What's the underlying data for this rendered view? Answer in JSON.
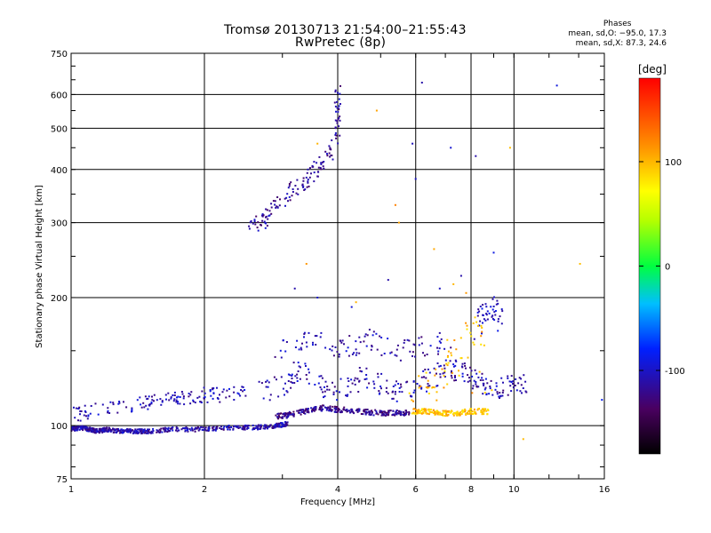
{
  "chart_data": {
    "type": "scatter",
    "title": "Tromsø 20130713 21:54:00–21:55:43",
    "subtitle": "RwPretec (8p)",
    "xlabel": "Frequency [MHz]",
    "ylabel": "Stationary phase Virtual Height [km]",
    "x_scale": "log",
    "y_scale": "log",
    "xlim": [
      1,
      16
    ],
    "ylim": [
      75,
      750
    ],
    "x_ticks": [
      1,
      2,
      4,
      6,
      8,
      10,
      16
    ],
    "x_tick_labels": [
      "1",
      "2",
      "4",
      "6",
      "8",
      "10",
      "16"
    ],
    "y_ticks": [
      75,
      100,
      200,
      300,
      400,
      500,
      600,
      750
    ],
    "y_tick_labels": [
      "75",
      "100",
      "200",
      "300",
      "400",
      "500",
      "600",
      "750"
    ],
    "grid": true,
    "phase_box": {
      "heading": "Phases",
      "line_o": "mean, sd,O: −95.0, 17.3",
      "line_x": "mean, sd,X: 87.3, 24.6"
    },
    "colorbar": {
      "label": "[deg]",
      "range": [
        -180,
        180
      ],
      "ticks": [
        100,
        0,
        -100
      ],
      "tick_labels": [
        "100",
        "0",
        "-100"
      ]
    },
    "traces": [
      {
        "phase": -110,
        "spread": 0.012,
        "n": 14,
        "points": [
          [
            1.0,
            98
          ],
          [
            1.05,
            99
          ],
          [
            1.1,
            98
          ],
          [
            1.15,
            97
          ],
          [
            1.2,
            98
          ],
          [
            1.3,
            97
          ],
          [
            1.4,
            97
          ],
          [
            1.5,
            97
          ],
          [
            1.7,
            98
          ],
          [
            2.0,
            98
          ],
          [
            2.3,
            99
          ],
          [
            2.6,
            99
          ],
          [
            2.9,
            100
          ],
          [
            3.1,
            101
          ]
        ]
      },
      {
        "phase": -120,
        "spread": 0.015,
        "n": 12,
        "points": [
          [
            2.9,
            105
          ],
          [
            3.1,
            106
          ],
          [
            3.4,
            108
          ],
          [
            3.7,
            110
          ],
          [
            4.0,
            109
          ],
          [
            4.5,
            108
          ],
          [
            5.0,
            107
          ],
          [
            5.4,
            107
          ],
          [
            5.8,
            107
          ]
        ]
      },
      {
        "phase": 95,
        "spread": 0.015,
        "n": 12,
        "points": [
          [
            5.9,
            108
          ],
          [
            6.3,
            108
          ],
          [
            6.8,
            107
          ],
          [
            7.4,
            107
          ],
          [
            8.0,
            108
          ],
          [
            8.8,
            108
          ]
        ]
      },
      {
        "phase": -105,
        "spread": 0.04,
        "n": 6,
        "points": [
          [
            1.02,
            106
          ],
          [
            1.1,
            108
          ],
          [
            1.3,
            111
          ],
          [
            1.5,
            114
          ],
          [
            1.7,
            117
          ],
          [
            1.8,
            116
          ],
          [
            2.0,
            118
          ],
          [
            2.2,
            118
          ],
          [
            2.5,
            120
          ]
        ]
      },
      {
        "phase": -110,
        "spread": 0.06,
        "n": 5,
        "points": [
          [
            2.7,
            120
          ],
          [
            3.0,
            125
          ],
          [
            3.2,
            135
          ],
          [
            3.5,
            130
          ],
          [
            3.8,
            120
          ],
          [
            4.2,
            125
          ],
          [
            4.6,
            130
          ],
          [
            5.0,
            125
          ],
          [
            5.5,
            120
          ],
          [
            6.0,
            125
          ],
          [
            6.5,
            130
          ],
          [
            7.0,
            135
          ],
          [
            7.5,
            135
          ],
          [
            8.0,
            128
          ],
          [
            8.5,
            125
          ],
          [
            9.0,
            125
          ],
          [
            9.5,
            122
          ],
          [
            10.0,
            128
          ],
          [
            10.7,
            122
          ]
        ]
      },
      {
        "phase": -110,
        "spread": 0.06,
        "n": 4,
        "points": [
          [
            2.9,
            150
          ],
          [
            3.3,
            155
          ],
          [
            3.6,
            160
          ],
          [
            4.0,
            150
          ],
          [
            4.4,
            155
          ],
          [
            4.8,
            160
          ],
          [
            5.3,
            152
          ],
          [
            5.8,
            150
          ],
          [
            6.5,
            155
          ],
          [
            7.2,
            160
          ]
        ]
      },
      {
        "phase": -115,
        "spread": 0.05,
        "n": 5,
        "points": [
          [
            2.5,
            290
          ],
          [
            2.7,
            300
          ],
          [
            2.8,
            320
          ],
          [
            3.0,
            340
          ],
          [
            3.2,
            360
          ],
          [
            3.4,
            380
          ],
          [
            3.6,
            400
          ],
          [
            3.8,
            430
          ],
          [
            4.0,
            480
          ],
          [
            4.0,
            540
          ],
          [
            4.0,
            610
          ]
        ]
      },
      {
        "phase": -100,
        "spread": 0.06,
        "n": 3,
        "points": [
          [
            8.3,
            180
          ],
          [
            8.7,
            185
          ],
          [
            9.1,
            190
          ],
          [
            9.4,
            175
          ],
          [
            8.9,
            200
          ],
          [
            8.2,
            160
          ]
        ]
      },
      {
        "phase": 100,
        "spread": 0.08,
        "n": 3,
        "points": [
          [
            5.6,
            110
          ],
          [
            6.5,
            120
          ],
          [
            7.0,
            130
          ],
          [
            7.5,
            150
          ],
          [
            8.0,
            170
          ],
          [
            8.5,
            160
          ],
          [
            6.2,
            140
          ],
          [
            9.0,
            120
          ]
        ]
      }
    ],
    "scattered_points": [
      {
        "phase": -100,
        "points": [
          [
            5.9,
            460
          ],
          [
            6.0,
            380
          ],
          [
            7.2,
            450
          ],
          [
            7.6,
            225
          ],
          [
            8.2,
            430
          ],
          [
            9.0,
            255
          ],
          [
            12.5,
            630
          ],
          [
            15.8,
            115
          ],
          [
            3.6,
            200
          ],
          [
            3.2,
            210
          ],
          [
            4.3,
            190
          ],
          [
            5.2,
            220
          ],
          [
            6.2,
            640
          ],
          [
            6.8,
            210
          ]
        ]
      },
      {
        "phase": 110,
        "points": [
          [
            3.6,
            460
          ],
          [
            4.9,
            550
          ],
          [
            5.4,
            330
          ],
          [
            7.3,
            215
          ],
          [
            7.8,
            205
          ],
          [
            3.4,
            240
          ],
          [
            4.4,
            195
          ],
          [
            5.5,
            300
          ],
          [
            6.6,
            260
          ],
          [
            14.1,
            240
          ],
          [
            10.5,
            93
          ],
          [
            9.8,
            450
          ]
        ]
      }
    ]
  }
}
